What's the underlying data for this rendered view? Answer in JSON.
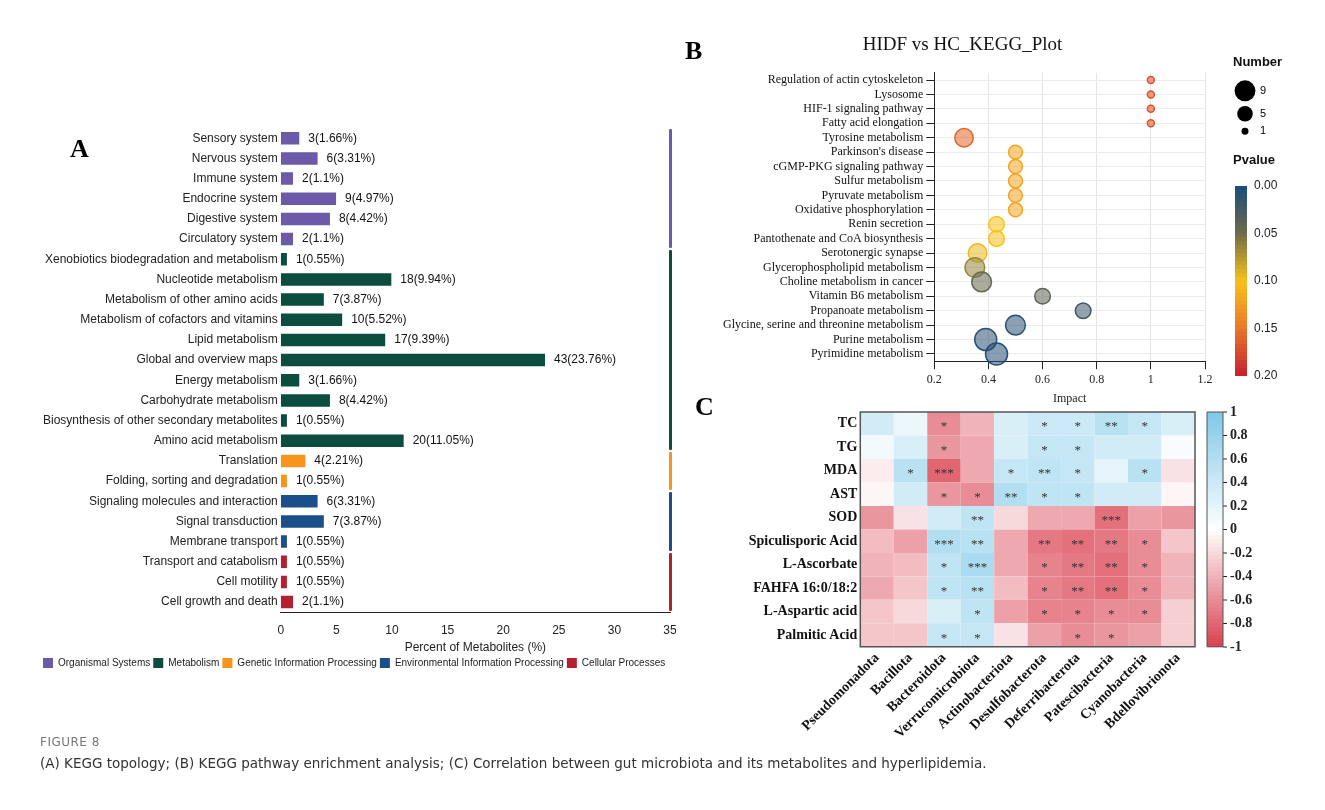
{
  "chart_data": [
    {
      "type": "bar",
      "orientation": "horizontal",
      "xlabel": "Percent of Metabolites (%)",
      "annotations": [
        "A"
      ],
      "legend": "bottom",
      "categories": [
        "Sensory system",
        "Nervous system",
        "Immune system",
        "Endocrine system",
        "Digestive system",
        "Circulatory system",
        "Xenobiotics biodegradation and metabolism",
        "Nucleotide metabolism",
        "Metabolism of other amino acids",
        "Metabolism of cofactors and vitamins",
        "Lipid metabolism",
        "Global and overview maps",
        "Energy metabolism",
        "Carbohydrate metabolism",
        "Biosynthesis of other secondary metabolites",
        "Amino acid metabolism",
        "Translation",
        "Folding, sorting and degradation",
        "Signaling molecules and interaction",
        "Signal transduction",
        "Membrane transport",
        "Transport and catabolism",
        "Cell motility",
        "Cell growth and death"
      ],
      "series": [
        {
          "name": "Organismal Systems",
          "color": "#6a5aa8",
          "values": [
            1.66,
            3.31,
            1.1,
            4.97,
            4.42,
            1.1,
            null,
            null,
            null,
            null,
            null,
            null,
            null,
            null,
            null,
            null,
            null,
            null,
            null,
            null,
            null,
            null,
            null,
            null
          ],
          "value_labels": [
            "3(1.66%)",
            "6(3.31%)",
            "2(1.1%)",
            "9(4.97%)",
            "8(4.42%)",
            "2(1.1%)",
            null,
            null,
            null,
            null,
            null,
            null,
            null,
            null,
            null,
            null,
            null,
            null,
            null,
            null,
            null,
            null,
            null,
            null
          ]
        },
        {
          "name": "Metabolism",
          "color": "#0b4d3f",
          "values": [
            null,
            null,
            null,
            null,
            null,
            null,
            0.55,
            9.94,
            3.87,
            5.52,
            9.39,
            23.76,
            1.66,
            4.42,
            0.55,
            11.05,
            null,
            null,
            null,
            null,
            null,
            null,
            null,
            null
          ],
          "value_labels": [
            null,
            null,
            null,
            null,
            null,
            null,
            "1(0.55%)",
            "18(9.94%)",
            "7(3.87%)",
            "10(5.52%)",
            "17(9.39%)",
            "43(23.76%)",
            "3(1.66%)",
            "8(4.42%)",
            "1(0.55%)",
            "20(11.05%)",
            null,
            null,
            null,
            null,
            null,
            null,
            null,
            null
          ]
        },
        {
          "name": "Genetic Information Processing",
          "color": "#f7941d",
          "values": [
            null,
            null,
            null,
            null,
            null,
            null,
            null,
            null,
            null,
            null,
            null,
            null,
            null,
            null,
            null,
            null,
            2.21,
            0.55,
            null,
            null,
            null,
            null,
            null,
            null
          ],
          "value_labels": [
            null,
            null,
            null,
            null,
            null,
            null,
            null,
            null,
            null,
            null,
            null,
            null,
            null,
            null,
            null,
            null,
            "4(2.21%)",
            "1(0.55%)",
            null,
            null,
            null,
            null,
            null,
            null
          ]
        },
        {
          "name": "Environmental Information Processing",
          "color": "#1b4f8a",
          "values": [
            null,
            null,
            null,
            null,
            null,
            null,
            null,
            null,
            null,
            null,
            null,
            null,
            null,
            null,
            null,
            null,
            null,
            null,
            3.31,
            3.87,
            0.55,
            null,
            null,
            null
          ],
          "value_labels": [
            null,
            null,
            null,
            null,
            null,
            null,
            null,
            null,
            null,
            null,
            null,
            null,
            null,
            null,
            null,
            null,
            null,
            null,
            "6(3.31%)",
            "7(3.87%)",
            "1(0.55%)",
            null,
            null,
            null
          ]
        },
        {
          "name": "Cellular Processes",
          "color": "#b5202e",
          "values": [
            null,
            null,
            null,
            null,
            null,
            null,
            null,
            null,
            null,
            null,
            null,
            null,
            null,
            null,
            null,
            null,
            null,
            null,
            null,
            null,
            null,
            0.55,
            0.55,
            1.1
          ],
          "value_labels": [
            null,
            null,
            null,
            null,
            null,
            null,
            null,
            null,
            null,
            null,
            null,
            null,
            null,
            null,
            null,
            null,
            null,
            null,
            null,
            null,
            null,
            "1(0.55%)",
            "1(0.55%)",
            "2(1.1%)"
          ]
        }
      ],
      "xlim": [
        0,
        35
      ],
      "xticks": [
        0,
        5,
        10,
        15,
        20,
        25,
        30,
        35
      ]
    },
    {
      "type": "bubble",
      "orientation": "horizontal",
      "title": "HIDF vs HC_KEGG_Plot",
      "xlabel": "Impact",
      "annotations": [
        "B"
      ],
      "legend_title": "Number",
      "clabel": "Pvalue",
      "grid": true,
      "categories": [
        "Regulation of actin cytoskeleton",
        "Lysosome",
        "HIF-1 signaling pathway",
        "Fatty acid elongation",
        "Tyrosine metabolism",
        "Parkinson's disease",
        "cGMP-PKG signaling pathway",
        "Sulfur metabolism",
        "Pyruvate metabolism",
        "Oxidative phosphorylation",
        "Renin secretion",
        "Pantothenate and CoA biosynthesis",
        "Serotonergic synapse",
        "Glycerophospholipid metabolism",
        "Choline metabolism in cancer",
        "Vitamin B6 metabolism",
        "Propanoate metabolism",
        "Glycine, serine and threonine metabolism",
        "Purine metabolism",
        "Pyrimidine metabolism"
      ],
      "values": [
        1,
        1,
        1,
        1,
        0.31,
        0.5,
        0.5,
        0.5,
        0.5,
        0.5,
        0.43,
        0.43,
        0.36,
        0.35,
        0.375,
        0.6,
        0.75,
        0.5,
        0.39,
        0.43
      ],
      "sizes": [
        1,
        1,
        1,
        1,
        7,
        4,
        4,
        4,
        4,
        4,
        5,
        5,
        7,
        8,
        8,
        5,
        5,
        8,
        10,
        10
      ],
      "cvalues": [
        0.17,
        0.17,
        0.17,
        0.17,
        0.16,
        0.12,
        0.12,
        0.12,
        0.12,
        0.12,
        0.1,
        0.1,
        0.095,
        0.065,
        0.045,
        0.04,
        0.02,
        0.01,
        0.01,
        0.005
      ],
      "size_legend": [
        9,
        5,
        1
      ],
      "xlim": [
        0.2,
        1.2
      ],
      "xticks": [
        0.2,
        0.4,
        0.6,
        0.8,
        1,
        1.2
      ],
      "clim": [
        0.2,
        0
      ],
      "cticks": [
        {
          "value": 0,
          "label": "0.00"
        },
        {
          "value": 0.05,
          "label": "0.05"
        },
        {
          "value": 0.1,
          "label": "0.10"
        },
        {
          "value": 0.15,
          "label": "0.15"
        },
        {
          "value": 0.2,
          "label": "0.20"
        }
      ]
    },
    {
      "type": "heatmap",
      "annotations": [
        "C"
      ],
      "categories": [
        "Pseudomonadota",
        "Bacillota",
        "Bacteroidota",
        "Verrucomicrobiota",
        "Actinobacteriota",
        "Desulfobacterota",
        "Deferribacterota",
        "Patescibacteria",
        "Cyanobacteria",
        "Bdellovibrionota"
      ],
      "y_categories": [
        "TC",
        "TG",
        "MDA",
        "AST",
        "SOD",
        "Spiculisporic Acid",
        "L-Ascorbate",
        "FAHFA 16:0/18:2",
        "L-Aspartic acid",
        "Palmitic Acid"
      ],
      "cells": [
        [
          0.35,
          0.15,
          -0.6,
          -0.4,
          0.3,
          0.4,
          0.4,
          0.55,
          0.45,
          0.3
        ],
        [
          0.1,
          0.3,
          -0.55,
          -0.45,
          0.3,
          0.45,
          0.45,
          0.35,
          0.35,
          0.05
        ],
        [
          -0.1,
          0.55,
          -0.8,
          -0.45,
          0.45,
          0.5,
          0.45,
          0.2,
          0.55,
          -0.15
        ],
        [
          -0.05,
          0.35,
          -0.55,
          -0.6,
          0.6,
          0.5,
          0.5,
          0.35,
          0.35,
          -0.05
        ],
        [
          -0.55,
          -0.15,
          0.35,
          0.5,
          -0.2,
          -0.45,
          -0.45,
          -0.75,
          -0.5,
          -0.55
        ],
        [
          -0.35,
          -0.5,
          0.6,
          0.55,
          -0.45,
          -0.7,
          -0.75,
          -0.7,
          -0.6,
          -0.3
        ],
        [
          -0.4,
          -0.35,
          0.5,
          0.65,
          -0.45,
          -0.65,
          -0.7,
          -0.75,
          -0.6,
          -0.4
        ],
        [
          -0.45,
          -0.3,
          0.5,
          0.55,
          -0.35,
          -0.65,
          -0.7,
          -0.75,
          -0.6,
          -0.4
        ],
        [
          -0.3,
          -0.2,
          0.3,
          0.5,
          -0.5,
          -0.65,
          -0.65,
          -0.6,
          -0.6,
          -0.25
        ],
        [
          -0.3,
          -0.3,
          0.45,
          0.45,
          -0.15,
          -0.5,
          -0.6,
          -0.55,
          -0.5,
          -0.25
        ]
      ],
      "cell_labels": [
        [
          null,
          null,
          "*",
          null,
          null,
          "*",
          "*",
          "**",
          "*",
          null
        ],
        [
          null,
          null,
          "*",
          null,
          null,
          "*",
          "*",
          null,
          null,
          null
        ],
        [
          null,
          "*",
          "***",
          null,
          "*",
          "**",
          "*",
          null,
          "*",
          null
        ],
        [
          null,
          null,
          "*",
          "*",
          "**",
          "*",
          "*",
          null,
          null,
          null
        ],
        [
          null,
          null,
          null,
          "**",
          null,
          null,
          null,
          "***",
          null,
          null
        ],
        [
          null,
          null,
          "***",
          "**",
          null,
          "**",
          "**",
          "**",
          "*",
          null
        ],
        [
          null,
          null,
          "*",
          "***",
          null,
          "*",
          "**",
          "**",
          "*",
          null
        ],
        [
          null,
          null,
          "*",
          "**",
          null,
          "*",
          "**",
          "**",
          "*",
          null
        ],
        [
          null,
          null,
          null,
          "*",
          null,
          "*",
          "*",
          "*",
          "*",
          null
        ],
        [
          null,
          null,
          "*",
          "*",
          null,
          null,
          "*",
          "*",
          null,
          null
        ]
      ],
      "clim": [
        -1,
        1
      ],
      "cticks": [
        -1,
        -0.8,
        -0.6,
        -0.4,
        -0.2,
        0,
        0.2,
        0.4,
        0.6,
        0.8,
        1
      ]
    },
    {
      "type": "other",
      "title": "FIGURE 8",
      "annotations": [
        "(A) KEGG topology; (B) KEGG pathway enrichment analysis; (C) Correlation between gut microbiota and its metabolites and hyperlipidemia."
      ]
    }
  ]
}
